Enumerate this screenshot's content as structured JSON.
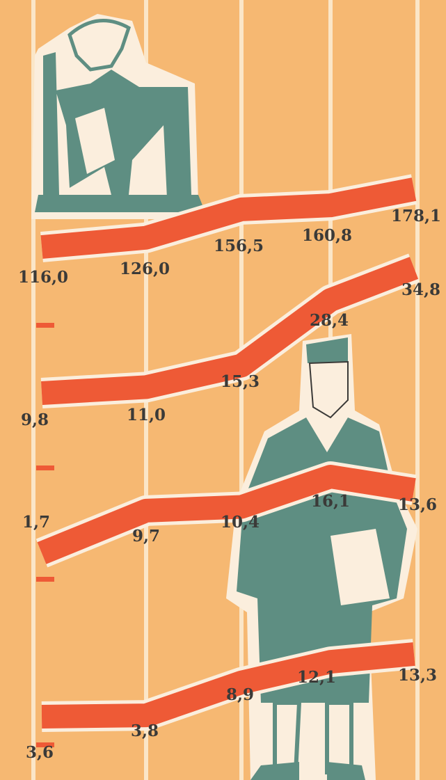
{
  "chart_data": [
    {
      "type": "line",
      "color": "#ee5a36",
      "values": [
        116.0,
        126.0,
        156.5,
        160.8,
        178.1
      ],
      "value_labels": [
        "116,0",
        "126,0",
        "156,5",
        "160,8",
        "178,1"
      ]
    },
    {
      "type": "line",
      "color": "#ee5a36",
      "values": [
        9.8,
        11.0,
        15.3,
        28.4,
        34.8
      ],
      "value_labels": [
        "9,8",
        "11,0",
        "15,3",
        "28,4",
        "34,8"
      ]
    },
    {
      "type": "line",
      "color": "#ee5a36",
      "values": [
        1.7,
        9.7,
        10.4,
        16.1,
        13.6
      ],
      "value_labels": [
        "1,7",
        "9,7",
        "10,4",
        "16,1",
        "13,6"
      ]
    },
    {
      "type": "line",
      "color": "#ee5a36",
      "values": [
        3.6,
        3.8,
        8.9,
        12.1,
        13.3
      ],
      "value_labels": [
        "3,6",
        "3,8",
        "8,9",
        "12,1",
        "13,3"
      ]
    }
  ]
}
